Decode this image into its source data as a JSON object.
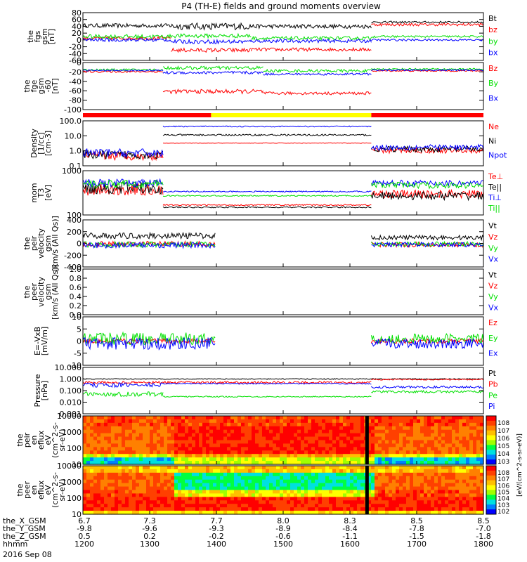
{
  "title": "P4 (TH-E) fields and ground moments overview",
  "colors": {
    "black": "#000000",
    "red": "#ff0000",
    "green": "#00e000",
    "blue": "#0000ff",
    "bar_red": "#ff0000",
    "bar_yellow": "#ffff00"
  },
  "chart_data": [
    {
      "type": "line",
      "id": "fgs",
      "ylabel": [
        "the",
        "fgs",
        "gsm",
        "[nT]"
      ],
      "ylim": [
        -60,
        80
      ],
      "yticks": [
        "80",
        "60",
        "40",
        "20",
        "0",
        "-20",
        "-40",
        "-60"
      ],
      "series": [
        {
          "name": "Bt",
          "color": "black",
          "levels": [
            [
              0,
              0.22,
              42,
              6
            ],
            [
              0.22,
              0.42,
              40,
              10
            ],
            [
              0.42,
              0.72,
              40,
              6
            ],
            [
              0.72,
              1,
              52,
              3
            ]
          ]
        },
        {
          "name": "bz",
          "color": "red",
          "levels": [
            [
              0,
              0.22,
              5,
              5
            ],
            [
              0.22,
              0.42,
              -30,
              6
            ],
            [
              0.42,
              0.72,
              -28,
              5
            ],
            [
              0.72,
              1,
              45,
              4
            ]
          ]
        },
        {
          "name": "by",
          "color": "green",
          "levels": [
            [
              0,
              0.22,
              10,
              6
            ],
            [
              0.22,
              0.42,
              12,
              6
            ],
            [
              0.42,
              0.72,
              5,
              5
            ],
            [
              0.72,
              1,
              10,
              3
            ]
          ]
        },
        {
          "name": "bx",
          "color": "blue",
          "levels": [
            [
              0,
              0.22,
              0,
              5
            ],
            [
              0.22,
              0.42,
              -5,
              6
            ],
            [
              0.42,
              0.72,
              -3,
              5
            ],
            [
              0.72,
              1,
              0,
              3
            ]
          ]
        }
      ]
    },
    {
      "type": "line",
      "id": "fge",
      "ylabel": [
        "the",
        "fge",
        "gsm",
        "-60",
        "[nT]"
      ],
      "ylim": [
        -110,
        20
      ],
      "yticks": [
        "0",
        "-20",
        "-40",
        "-60",
        "-80",
        "-100"
      ],
      "series": [
        {
          "name": "Bz",
          "color": "red",
          "levels": [
            [
              0,
              0.2,
              -5,
              3
            ],
            [
              0.2,
              0.45,
              -60,
              6
            ],
            [
              0.45,
              0.72,
              -65,
              4
            ],
            [
              0.72,
              1,
              -3,
              2
            ]
          ]
        },
        {
          "name": "By",
          "color": "green",
          "levels": [
            [
              0,
              0.2,
              0,
              3
            ],
            [
              0.2,
              0.45,
              5,
              5
            ],
            [
              0.45,
              0.72,
              -3,
              4
            ],
            [
              0.72,
              1,
              2,
              2
            ]
          ]
        },
        {
          "name": "Bx",
          "color": "blue",
          "levels": [
            [
              0,
              0.2,
              -2,
              2
            ],
            [
              0.2,
              0.45,
              -8,
              4
            ],
            [
              0.45,
              0.72,
              -12,
              3
            ],
            [
              0.72,
              1,
              -1,
              2
            ]
          ]
        }
      ]
    },
    {
      "type": "line",
      "id": "density",
      "log": true,
      "ylabel": [
        "Density",
        "[1/cc]",
        "[cm-3]"
      ],
      "ylim": [
        0.1,
        150
      ],
      "yticks": [
        "100.0",
        "10.0",
        "1.0",
        "0.1"
      ],
      "series": [
        {
          "name": "Ne",
          "color": "red",
          "levels": [
            [
              0,
              0.2,
              0.5,
              0.3
            ],
            [
              0.2,
              0.72,
              4,
              0.02
            ],
            [
              0.72,
              1,
              1.2,
              0.2
            ]
          ]
        },
        {
          "name": "Ni",
          "color": "black",
          "levels": [
            [
              0,
              0.2,
              0.6,
              0.3
            ],
            [
              0.2,
              0.72,
              15,
              0.06
            ],
            [
              0.72,
              1,
              1.5,
              0.2
            ]
          ]
        },
        {
          "name": "Npot",
          "color": "blue",
          "levels": [
            [
              0,
              0.2,
              0.8,
              0.3
            ],
            [
              0.2,
              0.72,
              60,
              0.04
            ],
            [
              0.72,
              1,
              2,
              0.2
            ]
          ]
        }
      ]
    },
    {
      "type": "line",
      "id": "temp",
      "log": true,
      "ylabel": [
        "mom",
        "T3",
        "[eV]"
      ],
      "ylim": [
        30,
        4000
      ],
      "yticks": [
        "1000",
        "100"
      ],
      "series": [
        {
          "name": "Te⊥",
          "color": "red",
          "levels": [
            [
              0,
              0.2,
              500,
              0.3
            ],
            [
              0.2,
              0.72,
              90,
              0.03
            ],
            [
              0.72,
              1,
              300,
              0.2
            ]
          ]
        },
        {
          "name": "Te||",
          "color": "black",
          "levels": [
            [
              0,
              0.2,
              600,
              0.3
            ],
            [
              0.2,
              0.72,
              70,
              0.03
            ],
            [
              0.72,
              1,
              250,
              0.2
            ]
          ]
        },
        {
          "name": "Ti⊥",
          "color": "blue",
          "levels": [
            [
              0,
              0.2,
              1000,
              0.2
            ],
            [
              0.2,
              0.72,
              400,
              0.03
            ],
            [
              0.72,
              1,
              1000,
              0.15
            ]
          ]
        },
        {
          "name": "Ti||",
          "color": "green",
          "levels": [
            [
              0,
              0.2,
              900,
              0.2
            ],
            [
              0.2,
              0.72,
              250,
              0.03
            ],
            [
              0.72,
              1,
              800,
              0.15
            ]
          ]
        }
      ]
    },
    {
      "type": "line",
      "id": "peir",
      "ylabel": [
        "the",
        "peir",
        "velocity",
        "gsm",
        "[km/s (All Qs)]"
      ],
      "ylim": [
        -400,
        400
      ],
      "yticks": [
        "400",
        "200",
        "0",
        "-200",
        "-400"
      ],
      "segments": [
        [
          0,
          0.33
        ],
        [
          0.72,
          1
        ]
      ],
      "series": [
        {
          "name": "Vt",
          "color": "black",
          "levels": [
            [
              0,
              0.33,
              130,
              50
            ],
            [
              0.72,
              1,
              100,
              40
            ]
          ]
        },
        {
          "name": "Vz",
          "color": "red",
          "levels": [
            [
              0,
              0.33,
              -10,
              45
            ],
            [
              0.72,
              1,
              -20,
              40
            ]
          ]
        },
        {
          "name": "Vy",
          "color": "green",
          "levels": [
            [
              0,
              0.33,
              -20,
              50
            ],
            [
              0.72,
              1,
              -10,
              40
            ]
          ]
        },
        {
          "name": "Vx",
          "color": "blue",
          "levels": [
            [
              0,
              0.33,
              -30,
              50
            ],
            [
              0.72,
              1,
              -20,
              40
            ]
          ]
        }
      ]
    },
    {
      "type": "line",
      "id": "peer",
      "ylabel": [
        "the",
        "peer",
        "velocity",
        "gsm",
        "[km/s (All Qs)]"
      ],
      "ylim": [
        0,
        1
      ],
      "yticks": [
        "1.0",
        "0.8",
        "0.6",
        "0.4",
        "0.2",
        "0.0"
      ],
      "series": [
        {
          "name": "Vt",
          "color": "black",
          "levels": []
        },
        {
          "name": "Vz",
          "color": "red",
          "levels": []
        },
        {
          "name": "Vy",
          "color": "green",
          "levels": []
        },
        {
          "name": "Vx",
          "color": "blue",
          "levels": []
        }
      ]
    },
    {
      "type": "line",
      "id": "efield",
      "ylabel": [
        "E=-VxB",
        "[mV/m]"
      ],
      "ylim": [
        -10,
        10
      ],
      "yticks": [
        "10",
        "5",
        "0",
        "-5",
        "-10"
      ],
      "segments": [
        [
          0,
          0.33
        ],
        [
          0.72,
          1
        ]
      ],
      "series": [
        {
          "name": "Ez",
          "color": "red",
          "levels": [
            [
              0,
              0.33,
              0,
              1
            ],
            [
              0.72,
              1,
              0,
              1
            ]
          ]
        },
        {
          "name": "Ey",
          "color": "green",
          "levels": [
            [
              0,
              0.33,
              1,
              2.5
            ],
            [
              0.72,
              1,
              1,
              2
            ]
          ]
        },
        {
          "name": "Ex",
          "color": "blue",
          "levels": [
            [
              0,
              0.33,
              -1,
              2.5
            ],
            [
              0.72,
              1,
              -1,
              2
            ]
          ]
        }
      ]
    },
    {
      "type": "line",
      "id": "pressure",
      "log": true,
      "ylabel": [
        "Pressure",
        "[nPa]"
      ],
      "ylim": [
        0.001,
        10
      ],
      "yticks": [
        "10.000",
        "1.000",
        "0.100",
        "0.010",
        "0.001"
      ],
      "series": [
        {
          "name": "Pt",
          "color": "black",
          "levels": [
            [
              0,
              1,
              1.0,
              0.04
            ]
          ]
        },
        {
          "name": "Pb",
          "color": "red",
          "levels": [
            [
              0,
              0.72,
              0.5,
              0.1
            ],
            [
              0.72,
              1,
              0.9,
              0.05
            ]
          ]
        },
        {
          "name": "Pe",
          "color": "green",
          "levels": [
            [
              0,
              0.2,
              0.05,
              0.2
            ],
            [
              0.2,
              0.72,
              0.03,
              0.05
            ],
            [
              0.72,
              1,
              0.08,
              0.1
            ]
          ]
        },
        {
          "name": "Pi",
          "color": "blue",
          "levels": [
            [
              0,
              0.2,
              0.3,
              0.2
            ],
            [
              0.2,
              0.72,
              0.4,
              0.05
            ],
            [
              0.72,
              1,
              0.2,
              0.1
            ]
          ]
        }
      ]
    },
    {
      "type": "heatmap",
      "id": "peir_spec",
      "ylabel": [
        "the",
        "peir",
        "en",
        "eflux",
        "eV",
        "(cm^2-s-",
        "sr-eV)"
      ],
      "yticks": [
        "10000",
        "1000",
        "100",
        "10"
      ],
      "colorbar": {
        "label": "[eV/(cm^2-s-sr-eV)]",
        "ticks": [
          "10^8",
          "10^7",
          "10^6",
          "10^5",
          "10^4",
          "10^3"
        ]
      }
    },
    {
      "type": "heatmap",
      "id": "peer_spec",
      "ylabel": [
        "the",
        "peer",
        "en",
        "eflux",
        "eV",
        "(cm^2-s-",
        "sr-eV)"
      ],
      "yticks": [
        "10000",
        "1000",
        "100",
        "10"
      ],
      "colorbar": {
        "label": "[eV/(cm^2-s-sr-eV)]",
        "ticks": [
          "10^8",
          "10^7",
          "10^6",
          "10^5",
          "10^4",
          "10^3",
          "10^2"
        ]
      }
    }
  ],
  "xaxis": {
    "rows": [
      {
        "name": "the_X_GSM",
        "values": [
          "6.7",
          "7.3",
          "7.7",
          "8.0",
          "8.3",
          "8.5",
          "8.5"
        ]
      },
      {
        "name": "the_Y_GSM",
        "values": [
          "-9.8",
          "-9.6",
          "-9.3",
          "-8.9",
          "-8.4",
          "-7.8",
          "-7.0"
        ]
      },
      {
        "name": "the_Z_GSM",
        "values": [
          "0.5",
          "0.2",
          "-0.2",
          "-0.6",
          "-1.1",
          "-1.5",
          "-1.8"
        ]
      },
      {
        "name": "hhmm",
        "values": [
          "1200",
          "1300",
          "1400",
          "1500",
          "1600",
          "1700",
          "1800"
        ]
      }
    ],
    "date": "2016 Sep 08"
  }
}
